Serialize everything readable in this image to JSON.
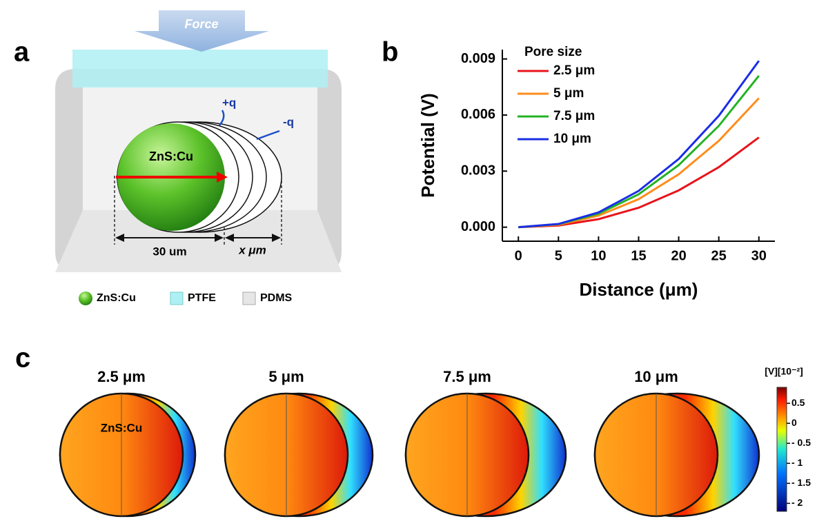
{
  "panel_a": {
    "label": "a",
    "force": "Force",
    "charge_pos": "+q",
    "charge_neg": "-q",
    "particle": "ZnS:Cu",
    "dim_left": "30 um",
    "dim_right": "x μm",
    "legend": [
      "ZnS:Cu",
      "PTFE",
      "PDMS"
    ]
  },
  "panel_b": {
    "label": "b"
  },
  "chart_data": {
    "type": "line",
    "legend_title": "Pore size",
    "xlabel": "Distance (μm)",
    "ylabel": "Potential (V)",
    "x": [
      0,
      5,
      10,
      15,
      20,
      25,
      30
    ],
    "series": [
      {
        "name": "2.5 μm",
        "color": "#e8141b",
        "values": [
          0,
          9e-05,
          0.00043,
          0.00104,
          0.00197,
          0.00321,
          0.0048
        ]
      },
      {
        "name": "5 μm",
        "color": "#ff8c1a",
        "values": [
          0,
          0.00013,
          0.00062,
          0.0015,
          0.00283,
          0.00462,
          0.0069
        ]
      },
      {
        "name": "7.5 μm",
        "color": "#22b322",
        "values": [
          0,
          0.00016,
          0.00072,
          0.00176,
          0.00332,
          0.00542,
          0.0081
        ]
      },
      {
        "name": "10 μm",
        "color": "#1a2ee6",
        "values": [
          0,
          0.00017,
          0.00079,
          0.00194,
          0.00365,
          0.00596,
          0.0089
        ]
      }
    ],
    "xlim": [
      -2,
      32
    ],
    "xticks": [
      0,
      5,
      10,
      15,
      20,
      25,
      30
    ],
    "ylim": [
      -0.00075,
      0.0095
    ],
    "yticks": [
      {
        "value": 0,
        "label": "0.000"
      },
      {
        "value": 0.003,
        "label": "0.003"
      },
      {
        "value": 0.006,
        "label": "0.006"
      },
      {
        "value": 0.009,
        "label": "0.009"
      }
    ],
    "legend": "upper left"
  },
  "panel_c": {
    "label": "c",
    "particle": "ZnS:Cu",
    "titles": [
      "2.5 μm",
      "5 μm",
      "7.5 μm",
      "10 μm"
    ],
    "colorbar": {
      "title": "[V][10⁻²]",
      "lim": [
        -2.2,
        0.9
      ],
      "ticks": [
        {
          "value": 0.5,
          "label": "0.5"
        },
        0,
        {
          "value": -0.5,
          "label": "- 0.5"
        },
        {
          "value": -1,
          "label": "- 1"
        },
        {
          "value": -1.5,
          "label": "- 1.5"
        },
        {
          "value": -2,
          "label": "- 2"
        }
      ]
    }
  }
}
